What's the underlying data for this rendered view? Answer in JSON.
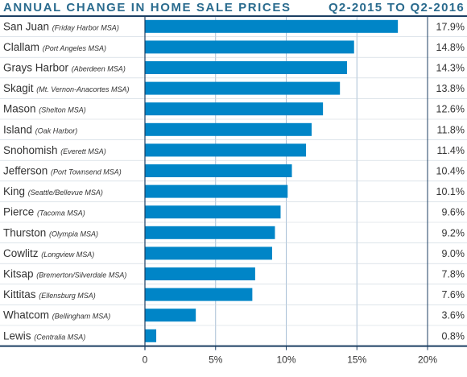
{
  "header": {
    "title": "ANNUAL CHANGE IN HOME SALE PRICES",
    "period": "Q2-2015 TO Q2-2016"
  },
  "colors": {
    "bar": "#0085c7",
    "frame": "#1c3f63",
    "grid": "#a9bfd6",
    "title": "#2a6b8e"
  },
  "chart_data": {
    "type": "bar",
    "orientation": "horizontal",
    "categories": [
      {
        "region": "San Juan",
        "msa": "(Friday Harbor MSA)",
        "value": 17.9,
        "label": "17.9%"
      },
      {
        "region": "Clallam",
        "msa": "(Port Angeles MSA)",
        "value": 14.8,
        "label": "14.8%"
      },
      {
        "region": "Grays Harbor",
        "msa": "(Aberdeen MSA)",
        "value": 14.3,
        "label": "14.3%"
      },
      {
        "region": "Skagit",
        "msa": "(Mt. Vernon-Anacortes MSA)",
        "value": 13.8,
        "label": "13.8%"
      },
      {
        "region": "Mason",
        "msa": "(Shelton MSA)",
        "value": 12.6,
        "label": "12.6%"
      },
      {
        "region": "Island",
        "msa": "(Oak Harbor)",
        "value": 11.8,
        "label": "11.8%"
      },
      {
        "region": "Snohomish",
        "msa": "(Everett MSA)",
        "value": 11.4,
        "label": "11.4%"
      },
      {
        "region": "Jefferson",
        "msa": "(Port Townsend MSA)",
        "value": 10.4,
        "label": "10.4%"
      },
      {
        "region": "King",
        "msa": "(Seattle/Bellevue MSA)",
        "value": 10.1,
        "label": "10.1%"
      },
      {
        "region": "Pierce",
        "msa": "(Tacoma MSA)",
        "value": 9.6,
        "label": "9.6%"
      },
      {
        "region": "Thurston",
        "msa": "(Olympia MSA)",
        "value": 9.2,
        "label": "9.2%"
      },
      {
        "region": "Cowlitz",
        "msa": "(Longview MSA)",
        "value": 9.0,
        "label": "9.0%"
      },
      {
        "region": "Kitsap",
        "msa": "(Bremerton/Silverdale MSA)",
        "value": 7.8,
        "label": "7.8%"
      },
      {
        "region": "Kittitas",
        "msa": "(Ellensburg MSA)",
        "value": 7.6,
        "label": "7.6%"
      },
      {
        "region": "Whatcom",
        "msa": "(Bellingham MSA)",
        "value": 3.6,
        "label": "3.6%"
      },
      {
        "region": "Lewis",
        "msa": "(Centralia MSA)",
        "value": 0.8,
        "label": "0.8%"
      }
    ],
    "xlim": [
      0,
      20
    ],
    "xticks": [
      {
        "value": 0,
        "label": "0"
      },
      {
        "value": 5,
        "label": "5%"
      },
      {
        "value": 10,
        "label": "10%"
      },
      {
        "value": 15,
        "label": "15%"
      },
      {
        "value": 20,
        "label": "20%"
      }
    ],
    "grid": true
  }
}
